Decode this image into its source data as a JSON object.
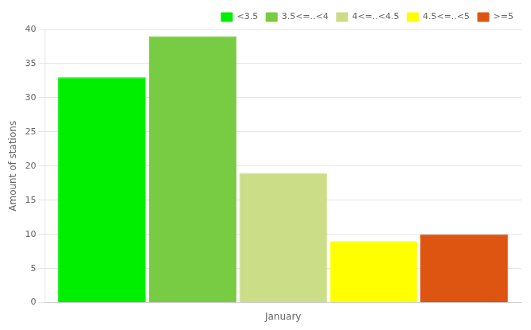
{
  "chart_data": {
    "type": "bar",
    "categories": [
      "January"
    ],
    "series": [
      {
        "name": "<3.5",
        "color": "#00ee00",
        "values": [
          33
        ]
      },
      {
        "name": "3.5<=..<4",
        "color": "#77cc44",
        "values": [
          39
        ]
      },
      {
        "name": "4<=..<4.5",
        "color": "#ccdd88",
        "values": [
          19
        ]
      },
      {
        "name": "4.5<=..<5",
        "color": "#ffff00",
        "values": [
          9
        ]
      },
      {
        "name": ">=5",
        "color": "#dd5511",
        "values": [
          10
        ]
      }
    ],
    "ylabel": "Amount of stations",
    "ylim": [
      0,
      40
    ],
    "yticks": [
      0,
      5,
      10,
      15,
      20,
      25,
      30,
      35,
      40
    ],
    "grid": true,
    "legend": "upper right"
  }
}
